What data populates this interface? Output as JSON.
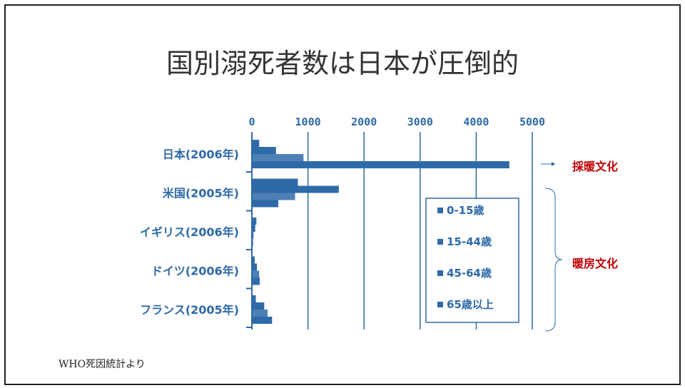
{
  "title": "国別溺死者数は日本が圧倒的",
  "source": "WHO死因統計より",
  "annotations": {
    "heating_culture": "採暖文化",
    "warming_culture": "暖房文化"
  },
  "colors": {
    "bar": "#2e6aa8",
    "accent": "#c00000"
  },
  "chart_data": {
    "type": "bar",
    "orientation": "horizontal",
    "categories": [
      "日本(2006年)",
      "米国(2005年)",
      "イギリス(2006年)",
      "ドイツ(2006年)",
      "フランス(2005年)"
    ],
    "x_ticks": [
      "0",
      "1000",
      "2000",
      "3000",
      "4000",
      "5000"
    ],
    "xlim": [
      0,
      5000
    ],
    "legend": [
      "0-15歳",
      "15-44歳",
      "45-64歳",
      "65歳以上"
    ],
    "series": [
      {
        "name": "0-15歳",
        "values": [
          130,
          820,
          80,
          50,
          70
        ]
      },
      {
        "name": "15-44歳",
        "values": [
          430,
          1550,
          60,
          90,
          220
        ]
      },
      {
        "name": "45-64歳",
        "values": [
          920,
          770,
          30,
          130,
          280
        ]
      },
      {
        "name": "65歳以上",
        "values": [
          4590,
          470,
          20,
          140,
          360
        ]
      }
    ]
  }
}
